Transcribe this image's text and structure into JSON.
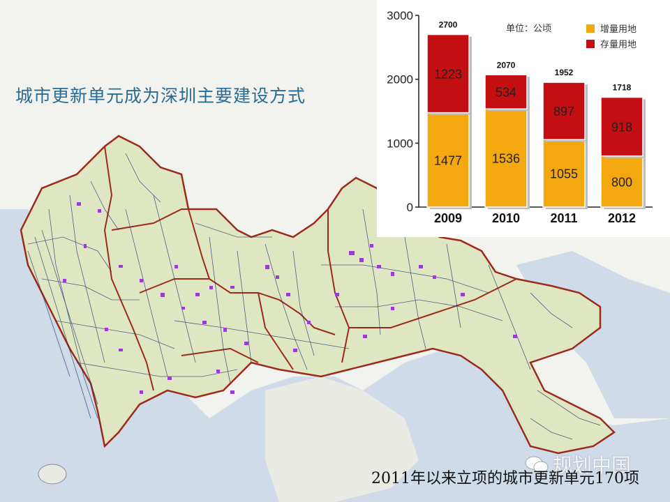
{
  "title": "城市更新单元成为深圳主要建设方式",
  "caption": "2011年以来立项的城市更新单元170项",
  "watermark": "规划中国",
  "colors": {
    "sea": "#cfdbe9",
    "land": "#dfe7c2",
    "district_border": "#9b2a1a",
    "road": "#1f2f6b",
    "update_unit": "#9b3ad6",
    "increment": "#f2a80e",
    "stock": "#c40f12"
  },
  "chart_data": {
    "type": "bar",
    "stacked": true,
    "categories": [
      "2009",
      "2010",
      "2011",
      "2012"
    ],
    "series": [
      {
        "name": "增量用地",
        "values": [
          1477,
          1536,
          1055,
          800
        ],
        "color": "#f2a80e"
      },
      {
        "name": "存量用地",
        "values": [
          1223,
          534,
          897,
          918
        ],
        "color": "#c40f12"
      }
    ],
    "totals": [
      2700,
      2070,
      1952,
      1718
    ],
    "unit_label": "单位：公顷",
    "ylim": [
      0,
      3000
    ],
    "yticks": [
      0,
      1000,
      2000,
      3000
    ],
    "legend_position": "top-right",
    "grid": false
  }
}
